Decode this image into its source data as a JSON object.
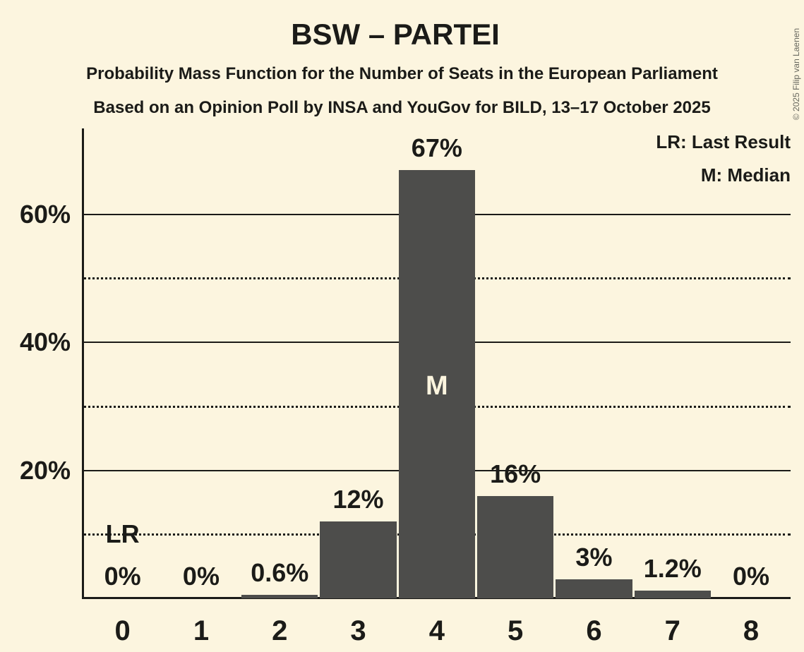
{
  "header": {
    "title": "BSW – PARTEI",
    "subtitle1": "Probability Mass Function for the Number of Seats in the European Parliament",
    "subtitle2": "Based on an Opinion Poll by INSA and YouGov for BILD, 13–17 October 2025"
  },
  "legend": {
    "lr": "LR: Last Result",
    "m": "M: Median"
  },
  "footer": {
    "copyright": "© 2025 Filip van Laenen"
  },
  "colors": {
    "background": "#fcf5df",
    "bar": "#4d4d4b",
    "text": "#1b1b18",
    "median_label": "#fcf5df",
    "copyright": "#67675e"
  },
  "chart_data": {
    "type": "bar",
    "title": "BSW – PARTEI",
    "subtitles": [
      "Probability Mass Function for the Number of Seats in the European Parliament",
      "Based on an Opinion Poll by INSA and YouGov for BILD, 13–17 October 2025"
    ],
    "xlabel": "",
    "ylabel": "",
    "categories": [
      "0",
      "1",
      "2",
      "3",
      "4",
      "5",
      "6",
      "7",
      "8"
    ],
    "values": [
      0,
      0,
      0.6,
      12,
      67,
      16,
      3,
      1.2,
      0
    ],
    "bar_labels": [
      "0%",
      "0%",
      "0.6%",
      "12%",
      "67%",
      "16%",
      "3%",
      "1.2%",
      "0%"
    ],
    "ylim": [
      0,
      73.5
    ],
    "y_ticks": [
      {
        "value": 20,
        "label": "20%"
      },
      {
        "value": 40,
        "label": "40%"
      },
      {
        "value": 60,
        "label": "60%"
      }
    ],
    "gridlines": {
      "solid": [
        20,
        40,
        60
      ],
      "dotted": [
        10,
        30,
        50
      ]
    },
    "legend_position": "top-right",
    "legend_entries": [
      "LR: Last Result",
      "M: Median"
    ],
    "annotations": {
      "last_result": {
        "category": "0",
        "label": "LR",
        "y": 10
      },
      "median": {
        "category": "4",
        "label": "M"
      }
    }
  }
}
